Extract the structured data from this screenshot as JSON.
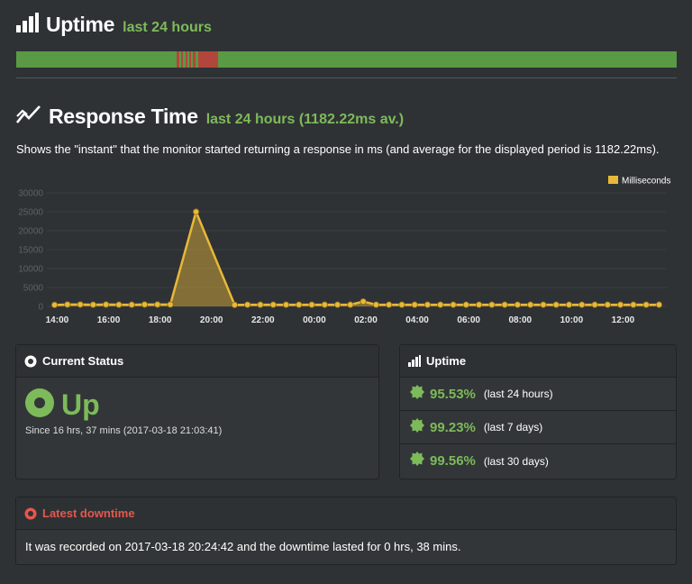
{
  "uptime_section": {
    "title": "Uptime",
    "subtitle": "last 24 hours",
    "bar": {
      "up_color": "#5a9a45",
      "down_color": "#b3463c",
      "down_segments": [
        {
          "start_pct": 24.3,
          "end_pct": 24.7
        },
        {
          "start_pct": 25.0,
          "end_pct": 25.3
        },
        {
          "start_pct": 25.6,
          "end_pct": 25.9
        },
        {
          "start_pct": 26.2,
          "end_pct": 26.5
        },
        {
          "start_pct": 26.8,
          "end_pct": 27.1
        },
        {
          "start_pct": 27.6,
          "end_pct": 30.6
        }
      ]
    }
  },
  "response_section": {
    "title": "Response Time",
    "subtitle": "last 24 hours (1182.22ms av.)",
    "description": "Shows the \"instant\" that the monitor started returning a response in ms (and average for the displayed period is 1182.22ms)."
  },
  "chart_data": {
    "type": "area",
    "title": "",
    "xlabel": "",
    "ylabel": "",
    "ylim": [
      0,
      30000
    ],
    "yticks": [
      0,
      5000,
      10000,
      15000,
      20000,
      25000,
      30000
    ],
    "x_tick_labels": [
      "14:00",
      "16:00",
      "18:00",
      "20:00",
      "22:00",
      "00:00",
      "02:00",
      "04:00",
      "06:00",
      "08:00",
      "10:00",
      "12:00"
    ],
    "x_range_hours": [
      13.6,
      37.7
    ],
    "legend": {
      "position": "top-right",
      "entries": [
        "Milliseconds"
      ]
    },
    "series_color": "#e8b838",
    "series": [
      {
        "name": "Milliseconds",
        "x_hours": [
          13.9,
          14.4,
          14.9,
          15.4,
          15.9,
          16.4,
          16.9,
          17.4,
          17.9,
          18.4,
          19.4,
          20.9,
          21.4,
          21.9,
          22.4,
          22.9,
          23.4,
          23.9,
          24.4,
          24.9,
          25.4,
          25.9,
          26.4,
          26.9,
          27.4,
          27.9,
          28.4,
          28.9,
          29.4,
          29.9,
          30.4,
          30.9,
          31.4,
          31.9,
          32.4,
          32.9,
          33.4,
          33.9,
          34.4,
          34.9,
          35.4,
          35.9,
          36.4,
          36.9,
          37.4
        ],
        "values": [
          400,
          500,
          500,
          450,
          500,
          450,
          450,
          500,
          500,
          500,
          25000,
          400,
          450,
          450,
          450,
          450,
          450,
          450,
          450,
          450,
          450,
          1300,
          450,
          450,
          450,
          450,
          450,
          450,
          450,
          450,
          450,
          450,
          450,
          450,
          450,
          450,
          450,
          450,
          450,
          450,
          450,
          450,
          450,
          450,
          450
        ]
      }
    ]
  },
  "current_status": {
    "header": "Current Status",
    "status": "Up",
    "since": "Since 16 hrs, 37 mins (2017-03-18 21:03:41)"
  },
  "uptime_panel": {
    "header": "Uptime",
    "rows": [
      {
        "pct": "95.53%",
        "period": "(last 24 hours)"
      },
      {
        "pct": "99.23%",
        "period": "(last 7 days)"
      },
      {
        "pct": "99.56%",
        "period": "(last 30 days)"
      }
    ]
  },
  "latest_downtime": {
    "header": "Latest downtime",
    "text": "It was recorded on 2017-03-18 20:24:42 and the downtime lasted for 0 hrs, 38 mins."
  },
  "colors": {
    "accent_green": "#7dbb5a",
    "alert_red": "#e5574e",
    "background": "#2f3235"
  }
}
